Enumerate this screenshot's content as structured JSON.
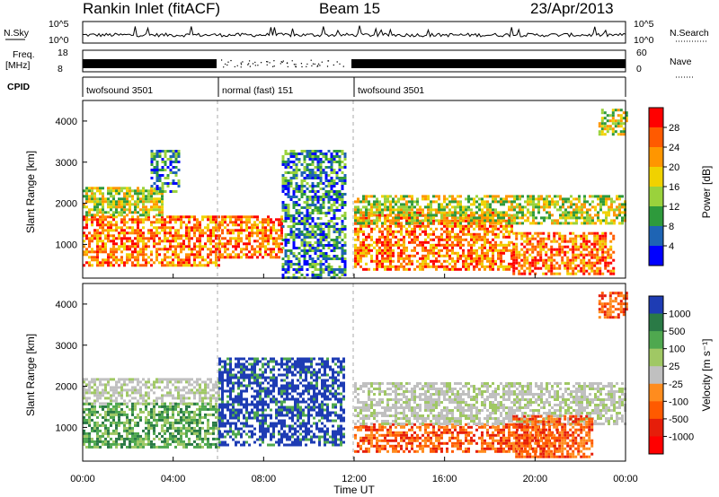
{
  "header": {
    "station": "Rankin Inlet (fitACF)",
    "beam": "Beam 15",
    "date": "23/Apr/2013"
  },
  "strips": {
    "nsky_label": "N.Sky",
    "nsearch_label": "N.Search",
    "nsky_ticks": [
      "10^5",
      "10^0"
    ],
    "nsearch_ticks": [
      "10^5",
      "10^0"
    ],
    "freq_label_top": "Freq.",
    "freq_label_bottom": "[MHz]",
    "freq_ticks": [
      "18",
      "8"
    ],
    "nave_label": "Nave",
    "nave_ticks": [
      "60",
      "0"
    ],
    "cpid_label": "CPID"
  },
  "cpid_segments": [
    {
      "label": "twofsound 3501",
      "start_hour": 0.0,
      "end_hour": 6.0
    },
    {
      "label": "normal (fast) 151",
      "start_hour": 6.0,
      "end_hour": 12.0
    },
    {
      "label": "twofsound 3501",
      "start_hour": 12.0,
      "end_hour": 24.0
    }
  ],
  "axes": {
    "ylabel": "Slant Range [km]",
    "xlabel": "Time UT",
    "x_ticks": [
      "00:00",
      "04:00",
      "08:00",
      "12:00",
      "16:00",
      "20:00",
      "00:00"
    ],
    "y_ticks": [
      "1000",
      "2000",
      "3000",
      "4000"
    ]
  },
  "colorbars": {
    "power": {
      "label": "Power [dB]",
      "ticks": [
        "28",
        "24",
        "20",
        "16",
        "12",
        "8",
        "4"
      ],
      "colors": [
        "#ff0000",
        "#ff5a00",
        "#ff9600",
        "#f0d200",
        "#9ad23c",
        "#2e9a3c",
        "#1e64b4",
        "#0000ff"
      ]
    },
    "velocity": {
      "label": "Velocity [m s⁻¹]",
      "ticks": [
        "1000",
        "500",
        "100",
        "25",
        "-25",
        "-100",
        "-500",
        "-1000"
      ],
      "colors": [
        "#1e3cb4",
        "#2a7a46",
        "#4fa84f",
        "#a0c864",
        "#c0c0c0",
        "#ff8c1e",
        "#ff5a00",
        "#e61e0a",
        "#ff0000"
      ]
    }
  },
  "chart_data": [
    {
      "type": "heatmap",
      "name": "power",
      "x_range_hours": [
        0,
        24
      ],
      "ylim_km": [
        180,
        4500
      ],
      "regions": [
        {
          "t": [
            0.0,
            6.0
          ],
          "r": [
            500,
            1700
          ],
          "level": "high"
        },
        {
          "t": [
            0.0,
            3.5
          ],
          "r": [
            1700,
            2400
          ],
          "level": "mid"
        },
        {
          "t": [
            3.0,
            4.3
          ],
          "r": [
            2300,
            3300
          ],
          "level": "low"
        },
        {
          "t": [
            6.0,
            8.8
          ],
          "r": [
            700,
            1700
          ],
          "level": "high"
        },
        {
          "t": [
            8.8,
            11.6
          ],
          "r": [
            200,
            3300
          ],
          "level": "low"
        },
        {
          "t": [
            12.0,
            19.0
          ],
          "r": [
            400,
            1800
          ],
          "level": "high"
        },
        {
          "t": [
            12.0,
            24.0
          ],
          "r": [
            1500,
            2200
          ],
          "level": "mid"
        },
        {
          "t": [
            19.0,
            23.5
          ],
          "r": [
            300,
            1300
          ],
          "level": "high"
        },
        {
          "t": [
            22.8,
            24.0
          ],
          "r": [
            3700,
            4300
          ],
          "level": "mid"
        }
      ]
    },
    {
      "type": "heatmap",
      "name": "velocity",
      "x_range_hours": [
        0,
        24
      ],
      "ylim_km": [
        180,
        4500
      ],
      "regions": [
        {
          "t": [
            0.0,
            6.0
          ],
          "r": [
            1600,
            2200
          ],
          "v": "near-zero"
        },
        {
          "t": [
            0.0,
            6.0
          ],
          "r": [
            500,
            1600
          ],
          "v": "positive-low"
        },
        {
          "t": [
            6.0,
            11.6
          ],
          "r": [
            600,
            2700
          ],
          "v": "positive-high"
        },
        {
          "t": [
            12.0,
            21.0
          ],
          "r": [
            400,
            1100
          ],
          "v": "negative"
        },
        {
          "t": [
            12.0,
            24.0
          ],
          "r": [
            1100,
            2100
          ],
          "v": "near-zero"
        },
        {
          "t": [
            19.0,
            22.5
          ],
          "r": [
            300,
            1300
          ],
          "v": "negative"
        },
        {
          "t": [
            22.8,
            24.0
          ],
          "r": [
            3700,
            4300
          ],
          "v": "negative"
        }
      ]
    }
  ]
}
